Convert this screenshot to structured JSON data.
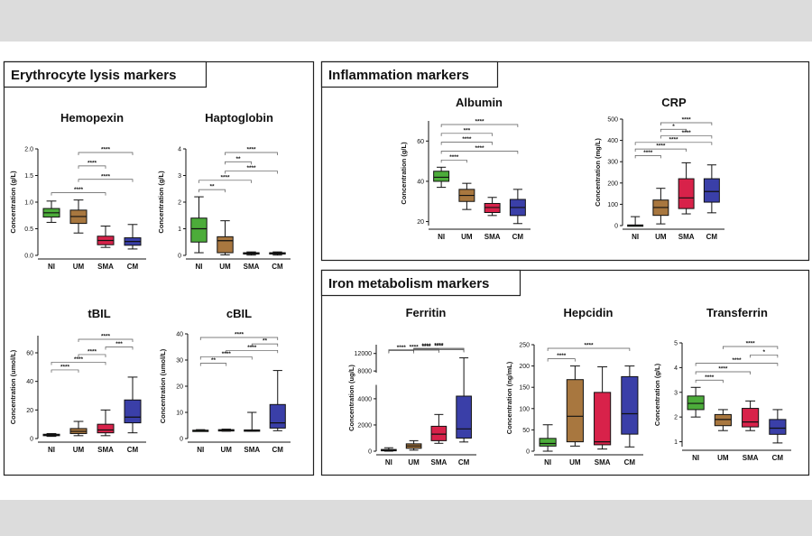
{
  "panels": [
    {
      "id": "ery",
      "title": "Erythrocyte lysis markers"
    },
    {
      "id": "inf",
      "title": "Inflammation markers"
    },
    {
      "id": "iron",
      "title": "Iron metabolism markers"
    }
  ],
  "groups": [
    "NI",
    "UM",
    "SMA",
    "CM"
  ],
  "colors": {
    "NI": "#4cac3a",
    "UM": "#a8773f",
    "SMA": "#d8224a",
    "CM": "#3a3fa8"
  },
  "chart_data": [
    {
      "id": "hemopexin",
      "type": "box",
      "title": "Hemopexin",
      "ylabel": "Concentration (g/L)",
      "categories": [
        "NI",
        "UM",
        "SMA",
        "CM"
      ],
      "yticks": [
        0.0,
        0.5,
        1.0,
        1.5,
        2.0
      ],
      "ytick_labels": [
        "0.0",
        "0.5",
        "1.0",
        "1.5",
        "2.0"
      ],
      "ylim": [
        0,
        2.0
      ],
      "boxes": [
        {
          "min": 0.62,
          "q1": 0.72,
          "median": 0.8,
          "q3": 0.88,
          "max": 1.02
        },
        {
          "min": 0.42,
          "q1": 0.6,
          "median": 0.73,
          "q3": 0.85,
          "max": 1.04
        },
        {
          "min": 0.15,
          "q1": 0.2,
          "median": 0.28,
          "q3": 0.36,
          "max": 0.55
        },
        {
          "min": 0.12,
          "q1": 0.19,
          "median": 0.26,
          "q3": 0.33,
          "max": 0.58
        }
      ],
      "brackets": [
        {
          "from": 1,
          "to": 3,
          "label": "****"
        },
        {
          "from": 1,
          "to": 2,
          "label": "****"
        },
        {
          "from": 1,
          "to": 3,
          "label": "****"
        },
        {
          "from": 0,
          "to": 2,
          "label": "****"
        }
      ]
    },
    {
      "id": "haptoglobin",
      "type": "box",
      "title": "Haptoglobin",
      "ylabel": "Concentration (g/L)",
      "categories": [
        "NI",
        "UM",
        "SMA",
        "CM"
      ],
      "yticks": [
        0,
        1,
        2,
        3,
        4
      ],
      "ytick_labels": [
        "0",
        "1",
        "2",
        "3",
        "4"
      ],
      "ylim": [
        0,
        4
      ],
      "boxes": [
        {
          "min": 0.1,
          "q1": 0.5,
          "median": 1.0,
          "q3": 1.4,
          "max": 2.2
        },
        {
          "min": 0.02,
          "q1": 0.1,
          "median": 0.55,
          "q3": 0.7,
          "max": 1.3
        },
        {
          "min": 0.01,
          "q1": 0.05,
          "median": 0.07,
          "q3": 0.1,
          "max": 0.13
        },
        {
          "min": 0.01,
          "q1": 0.05,
          "median": 0.07,
          "q3": 0.1,
          "max": 0.13
        }
      ],
      "brackets": [
        {
          "from": 1,
          "to": 3,
          "label": "****"
        },
        {
          "from": 1,
          "to": 2,
          "label": "**"
        },
        {
          "from": 1,
          "to": 3,
          "label": "****"
        },
        {
          "from": 0,
          "to": 2,
          "label": "****"
        },
        {
          "from": 0,
          "to": 1,
          "label": "**"
        }
      ]
    },
    {
      "id": "tbil",
      "type": "box",
      "title": "tBIL",
      "ylabel": "Concentration (umol/L)",
      "categories": [
        "NI",
        "UM",
        "SMA",
        "CM"
      ],
      "yticks": [
        0,
        20,
        40,
        60
      ],
      "ytick_labels": [
        "0",
        "20",
        "40",
        "60"
      ],
      "ylim": [
        0,
        72
      ],
      "boxes": [
        {
          "min": 1.5,
          "q1": 2,
          "median": 2.5,
          "q3": 3,
          "max": 3.5
        },
        {
          "min": 2,
          "q1": 3.5,
          "median": 5,
          "q3": 7,
          "max": 12
        },
        {
          "min": 2,
          "q1": 4,
          "median": 6,
          "q3": 10,
          "max": 20
        },
        {
          "min": 4,
          "q1": 11,
          "median": 15,
          "q3": 27,
          "max": 43
        }
      ],
      "brackets": [
        {
          "from": 1,
          "to": 3,
          "label": "****"
        },
        {
          "from": 2,
          "to": 3,
          "label": "***"
        },
        {
          "from": 1,
          "to": 2,
          "label": "****"
        },
        {
          "from": 0,
          "to": 2,
          "label": "****"
        },
        {
          "from": 0,
          "to": 1,
          "label": "****"
        }
      ]
    },
    {
      "id": "cbil",
      "type": "box",
      "title": "cBIL",
      "ylabel": "Concentration (umol/L)",
      "categories": [
        "NI",
        "UM",
        "SMA",
        "CM"
      ],
      "yticks": [
        0,
        10,
        20,
        30,
        40
      ],
      "ytick_labels": [
        "0",
        "10",
        "20",
        "30",
        "40"
      ],
      "ylim": [
        0,
        40
      ],
      "boxes": [
        {
          "min": 2.8,
          "q1": 3,
          "median": 3,
          "q3": 3.2,
          "max": 3.4
        },
        {
          "min": 2.8,
          "q1": 3,
          "median": 3.2,
          "q3": 3.4,
          "max": 3.6
        },
        {
          "min": 2.8,
          "q1": 3,
          "median": 3.1,
          "q3": 3.3,
          "max": 10
        },
        {
          "min": 3,
          "q1": 4,
          "median": 6,
          "q3": 13,
          "max": 26
        }
      ],
      "brackets": [
        {
          "from": 0,
          "to": 3,
          "label": "****"
        },
        {
          "from": 2,
          "to": 3,
          "label": "**"
        },
        {
          "from": 1,
          "to": 3,
          "label": "****"
        },
        {
          "from": 0,
          "to": 2,
          "label": "****"
        },
        {
          "from": 0,
          "to": 1,
          "label": "**"
        }
      ]
    },
    {
      "id": "albumin",
      "type": "box",
      "title": "Albumin",
      "ylabel": "Concentration (g/L)",
      "categories": [
        "NI",
        "UM",
        "SMA",
        "CM"
      ],
      "yticks": [
        20,
        40,
        60
      ],
      "ytick_labels": [
        "20",
        "40",
        "60"
      ],
      "ylim": [
        18,
        70
      ],
      "boxes": [
        {
          "min": 37,
          "q1": 40,
          "median": 42,
          "q3": 45,
          "max": 47
        },
        {
          "min": 26,
          "q1": 30,
          "median": 33,
          "q3": 36,
          "max": 39
        },
        {
          "min": 23,
          "q1": 24.5,
          "median": 27,
          "q3": 29,
          "max": 32
        },
        {
          "min": 19,
          "q1": 23,
          "median": 27,
          "q3": 31,
          "max": 36
        }
      ],
      "brackets": [
        {
          "from": 0,
          "to": 3,
          "label": "****"
        },
        {
          "from": 0,
          "to": 2,
          "label": "***"
        },
        {
          "from": 0,
          "to": 2,
          "label": "****"
        },
        {
          "from": 0,
          "to": 3,
          "label": "****"
        },
        {
          "from": 0,
          "to": 1,
          "label": "****"
        }
      ]
    },
    {
      "id": "crp",
      "type": "box",
      "title": "CRP",
      "ylabel": "Concentration (mg/L)",
      "categories": [
        "NI",
        "UM",
        "SMA",
        "CM"
      ],
      "yticks": [
        0,
        100,
        200,
        300,
        400,
        500
      ],
      "ytick_labels": [
        "0",
        "100",
        "200",
        "300",
        "400",
        "500"
      ],
      "ylim": [
        0,
        500
      ],
      "boxes": [
        {
          "min": 0,
          "q1": 0,
          "median": 1,
          "q3": 3,
          "max": 42
        },
        {
          "min": 8,
          "q1": 48,
          "median": 85,
          "q3": 120,
          "max": 175
        },
        {
          "min": 55,
          "q1": 80,
          "median": 130,
          "q3": 220,
          "max": 295
        },
        {
          "min": 60,
          "q1": 110,
          "median": 160,
          "q3": 220,
          "max": 285
        }
      ],
      "brackets": [
        {
          "from": 1,
          "to": 3,
          "label": "****"
        },
        {
          "from": 1,
          "to": 2,
          "label": "*"
        },
        {
          "from": 1,
          "to": 3,
          "label": "****"
        },
        {
          "from": 0,
          "to": 3,
          "label": "****"
        },
        {
          "from": 0,
          "to": 2,
          "label": "****"
        },
        {
          "from": 0,
          "to": 1,
          "label": "****"
        }
      ]
    },
    {
      "id": "ferritin",
      "type": "box",
      "title": "Ferritin",
      "ylabel": "Concentration (ug/L)",
      "categories": [
        "NI",
        "UM",
        "SMA",
        "CM"
      ],
      "yticks": [
        0,
        2000,
        4000,
        8000,
        12000
      ],
      "ytick_labels": [
        "0",
        "2000",
        "4000",
        "8000",
        "12000"
      ],
      "ylim": [
        0,
        14000
      ],
      "axis_break": [
        5200,
        7200
      ],
      "boxes": [
        {
          "min": 0,
          "q1": 40,
          "median": 80,
          "q3": 130,
          "max": 260
        },
        {
          "min": 80,
          "q1": 220,
          "median": 400,
          "q3": 560,
          "max": 800
        },
        {
          "min": 600,
          "q1": 800,
          "median": 1300,
          "q3": 1900,
          "max": 2800
        },
        {
          "min": 700,
          "q1": 1000,
          "median": 1700,
          "q3": 4200,
          "max": 11000
        }
      ],
      "brackets": [
        {
          "from": 1,
          "to": 3,
          "label": "****"
        },
        {
          "from": 1,
          "to": 2,
          "label": "****"
        },
        {
          "from": 1,
          "to": 3,
          "label": "****"
        },
        {
          "from": 0,
          "to": 3,
          "label": "****"
        },
        {
          "from": 0,
          "to": 2,
          "label": "****"
        },
        {
          "from": 0,
          "to": 1,
          "label": "****"
        }
      ]
    },
    {
      "id": "hepcidin",
      "type": "box",
      "title": "Hepcidin",
      "ylabel": "Concentration (ng/mL)",
      "categories": [
        "NI",
        "UM",
        "SMA",
        "CM"
      ],
      "yticks": [
        0,
        50,
        100,
        150,
        200,
        250
      ],
      "ytick_labels": [
        "0",
        "50",
        "100",
        "150",
        "200",
        "250"
      ],
      "ylim": [
        0,
        250
      ],
      "boxes": [
        {
          "min": 0,
          "q1": 12,
          "median": 18,
          "q3": 30,
          "max": 62
        },
        {
          "min": 12,
          "q1": 22,
          "median": 82,
          "q3": 168,
          "max": 200
        },
        {
          "min": 5,
          "q1": 15,
          "median": 22,
          "q3": 138,
          "max": 198
        },
        {
          "min": 10,
          "q1": 40,
          "median": 88,
          "q3": 175,
          "max": 200
        }
      ],
      "brackets": [
        {
          "from": 0,
          "to": 3,
          "label": "****"
        },
        {
          "from": 0,
          "to": 1,
          "label": "****"
        }
      ]
    },
    {
      "id": "transferrin",
      "type": "box",
      "title": "Transferrin",
      "ylabel": "Concentration (g/L)",
      "categories": [
        "NI",
        "UM",
        "SMA",
        "CM"
      ],
      "yticks": [
        1,
        2,
        3,
        4,
        5
      ],
      "ytick_labels": [
        "1",
        "2",
        "3",
        "4",
        "5"
      ],
      "ylim": [
        0.8,
        5
      ],
      "boxes": [
        {
          "min": 2.0,
          "q1": 2.3,
          "median": 2.55,
          "q3": 2.85,
          "max": 3.2
        },
        {
          "min": 1.45,
          "q1": 1.65,
          "median": 1.9,
          "q3": 2.1,
          "max": 2.3
        },
        {
          "min": 1.45,
          "q1": 1.6,
          "median": 1.8,
          "q3": 2.35,
          "max": 2.65
        },
        {
          "min": 0.95,
          "q1": 1.3,
          "median": 1.55,
          "q3": 1.9,
          "max": 2.3
        }
      ],
      "brackets": [
        {
          "from": 1,
          "to": 3,
          "label": "****"
        },
        {
          "from": 2,
          "to": 3,
          "label": "*"
        },
        {
          "from": 0,
          "to": 3,
          "label": "****"
        },
        {
          "from": 0,
          "to": 2,
          "label": "****"
        },
        {
          "from": 0,
          "to": 1,
          "label": "****"
        }
      ]
    }
  ]
}
